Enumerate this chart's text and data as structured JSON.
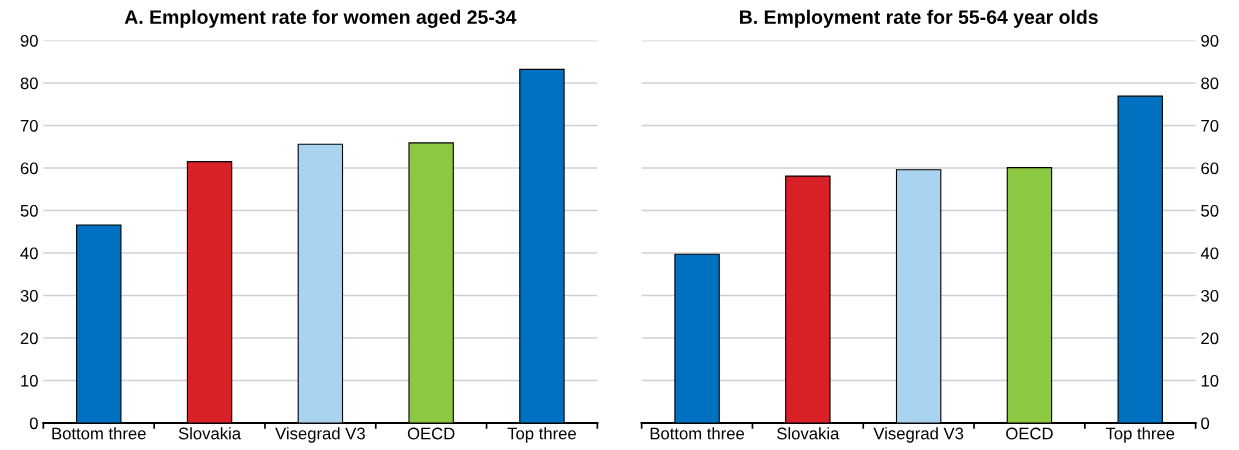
{
  "chart_data": [
    {
      "type": "bar",
      "title": "A. Employment rate for women aged 25-34",
      "categories": [
        "Bottom three",
        "Slovakia",
        "Visegrad V3",
        "OECD",
        "Top three"
      ],
      "values": [
        46.6,
        61.5,
        65.6,
        65.9,
        83.2
      ],
      "colors": [
        "#0070c0",
        "#da2128",
        "#a8d4f2",
        "#8cc841",
        "#0070c0"
      ],
      "ylim": [
        0,
        90
      ],
      "yticks": [
        0,
        10,
        20,
        30,
        40,
        50,
        60,
        70,
        80,
        90
      ],
      "grid": "y"
    },
    {
      "type": "bar",
      "title": "B. Employment rate for 55-64 year olds",
      "categories": [
        "Bottom three",
        "Slovakia",
        "Visegrad V3",
        "OECD",
        "Top three"
      ],
      "values": [
        39.7,
        58.1,
        59.6,
        60.1,
        76.9
      ],
      "colors": [
        "#0070c0",
        "#da2128",
        "#a8d4f2",
        "#8cc841",
        "#0070c0"
      ],
      "ylim": [
        0,
        90
      ],
      "yticks": [
        0,
        10,
        20,
        30,
        40,
        50,
        60,
        70,
        80,
        90
      ],
      "grid": "y"
    }
  ]
}
